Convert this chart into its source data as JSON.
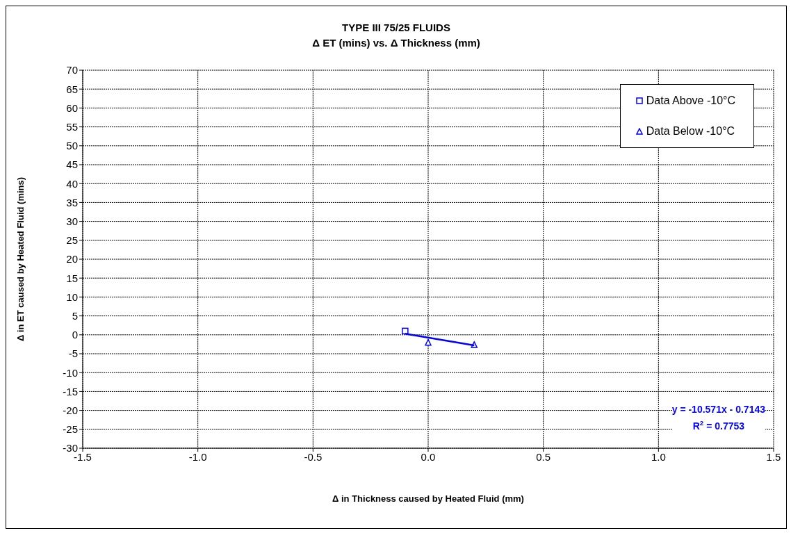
{
  "chart_data": {
    "type": "scatter",
    "title": "TYPE III 75/25 FLUIDS",
    "subtitle": "Δ ET (mins) vs. Δ Thickness (mm)",
    "xlabel": "Δ in Thickness caused by Heated Fluid (mm)",
    "ylabel": "Δ in ET caused by Heated Fluid (mins)",
    "series": [
      {
        "name": "Data Above -10°C",
        "color": "#0000ff",
        "marker": "square",
        "x": [
          -0.1
        ],
        "values": [
          1
        ]
      },
      {
        "name": "Data Below -10°C",
        "color": "#0000ff",
        "marker": "triangle",
        "x": [
          0,
          0.2
        ],
        "values": [
          -2,
          -2.6
        ]
      },
      {
        "type": "line",
        "color": "#0000ff",
        "marker": "none",
        "x": [
          -0.1,
          0.2
        ],
        "values": [
          0.3,
          -2.8
        ]
      }
    ],
    "xlim": [
      -1.5,
      1.5
    ],
    "xticks": [
      -1.5,
      {
        "value": -1,
        "label": "-1.0"
      },
      -0.5,
      {
        "value": 0,
        "label": "0.0"
      },
      0.5,
      {
        "value": 1,
        "label": "1.0"
      },
      1.5
    ],
    "ylim": [
      -30,
      70
    ],
    "yticks": [
      -30,
      -25,
      -20,
      -15,
      -10,
      -5,
      0,
      5,
      10,
      15,
      20,
      25,
      30,
      35,
      40,
      45,
      50,
      55,
      60,
      65,
      70
    ],
    "grid": true,
    "legend": "top right",
    "annotations": [
      "y = -10.571x - 0.7143",
      "R$^{2}$ = 0.7753"
    ]
  }
}
